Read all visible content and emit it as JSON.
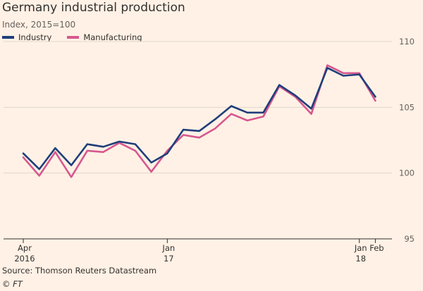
{
  "title": "Germany industrial production",
  "subtitle": "Index, 2015=100",
  "source": "Source: Thomson Reuters Datastream",
  "credit": "© FT",
  "colors": {
    "background": "#fff1e5",
    "industry": "#1f3e7b",
    "manufacturing": "#d6588f",
    "grid": "#e1d6cd",
    "axis": "#33302e"
  },
  "chart_data": {
    "type": "line",
    "x": [
      "2016-04",
      "2016-05",
      "2016-06",
      "2016-07",
      "2016-08",
      "2016-09",
      "2016-10",
      "2016-11",
      "2016-12",
      "2017-01",
      "2017-02",
      "2017-03",
      "2017-04",
      "2017-05",
      "2017-06",
      "2017-07",
      "2017-08",
      "2017-09",
      "2017-10",
      "2017-11",
      "2017-12",
      "2018-01",
      "2018-02"
    ],
    "series": [
      {
        "name": "Industry",
        "color": "#1f3e7b",
        "values": [
          101.5,
          100.3,
          101.9,
          100.6,
          102.2,
          102.0,
          102.4,
          102.2,
          100.8,
          101.5,
          103.3,
          103.2,
          104.1,
          105.1,
          104.6,
          104.6,
          106.7,
          105.9,
          104.9,
          108.0,
          107.4,
          107.5,
          105.8
        ]
      },
      {
        "name": "Manufacturing",
        "color": "#d6588f",
        "values": [
          101.2,
          99.8,
          101.6,
          99.7,
          101.7,
          101.6,
          102.3,
          101.7,
          100.1,
          101.7,
          102.9,
          102.7,
          103.4,
          104.5,
          104.0,
          104.3,
          106.6,
          105.8,
          104.5,
          108.2,
          107.6,
          107.6,
          105.5
        ]
      }
    ],
    "ylim": [
      95,
      110
    ],
    "yticks": [
      95,
      100,
      105,
      110
    ],
    "xticks": [
      {
        "x": "2016-04",
        "line1": "Apr",
        "line2": "2016"
      },
      {
        "x": "2017-01",
        "line1": "Jan",
        "line2": "17"
      },
      {
        "x": "2018-01",
        "line1": "Jan",
        "line2": "18"
      },
      {
        "x": "2018-02",
        "line1": "Feb",
        "line2": ""
      }
    ],
    "grid": true,
    "legend": "top-left"
  }
}
